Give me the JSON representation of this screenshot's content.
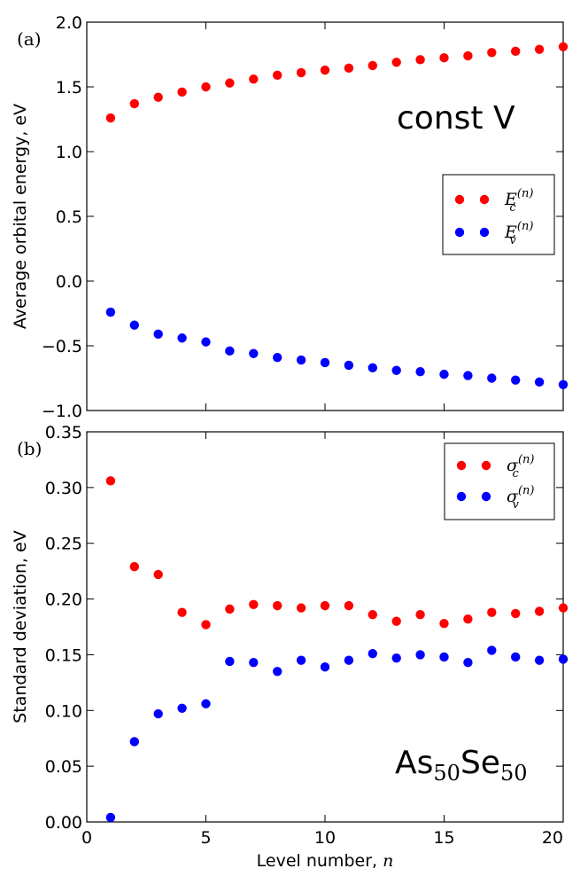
{
  "chart_data": [
    {
      "type": "scatter",
      "panel_label": "(a)",
      "annotation": "const V",
      "ylabel": "Average orbital energy, eV",
      "xlabel": "",
      "xlim": [
        0,
        20
      ],
      "ylim": [
        -1.0,
        2.0
      ],
      "xticks": [
        "0",
        "5",
        "10",
        "15",
        "20"
      ],
      "yticks": [
        "−1.0",
        "−0.5",
        "0.0",
        "0.5",
        "1.0",
        "1.5",
        "2.0"
      ],
      "ytick_values": [
        -1.0,
        -0.5,
        0.0,
        0.5,
        1.0,
        1.5,
        2.0
      ],
      "legend_position": "center-right",
      "x": [
        1,
        2,
        3,
        4,
        5,
        6,
        7,
        8,
        9,
        10,
        11,
        12,
        13,
        14,
        15,
        16,
        17,
        18,
        19,
        20
      ],
      "series": [
        {
          "name": "E",
          "sub": "c",
          "sup": "(n)",
          "color": "#ff0000",
          "values": [
            1.26,
            1.37,
            1.42,
            1.46,
            1.5,
            1.53,
            1.56,
            1.59,
            1.61,
            1.63,
            1.645,
            1.665,
            1.69,
            1.71,
            1.725,
            1.74,
            1.765,
            1.775,
            1.79,
            1.81
          ]
        },
        {
          "name": "E",
          "sub": "v",
          "sup": "(n)",
          "color": "#0000ff",
          "values": [
            -0.24,
            -0.34,
            -0.41,
            -0.44,
            -0.47,
            -0.54,
            -0.56,
            -0.59,
            -0.61,
            -0.63,
            -0.65,
            -0.67,
            -0.69,
            -0.7,
            -0.72,
            -0.73,
            -0.75,
            -0.765,
            -0.78,
            -0.8
          ]
        }
      ]
    },
    {
      "type": "scatter",
      "panel_label": "(b)",
      "annotation": {
        "main1": "As",
        "sub1": "50",
        "main2": "Se",
        "sub2": "50"
      },
      "ylabel": "Standard deviation, eV",
      "xlabel": "Level number, n",
      "xlim": [
        0,
        20
      ],
      "ylim": [
        0.0,
        0.35
      ],
      "xticks": [
        "0",
        "5",
        "10",
        "15",
        "20"
      ],
      "yticks": [
        "0.00",
        "0.05",
        "0.10",
        "0.15",
        "0.20",
        "0.25",
        "0.30",
        "0.35"
      ],
      "ytick_values": [
        0.0,
        0.05,
        0.1,
        0.15,
        0.2,
        0.25,
        0.3,
        0.35
      ],
      "legend_position": "upper-right",
      "x": [
        1,
        2,
        3,
        4,
        5,
        6,
        7,
        8,
        9,
        10,
        11,
        12,
        13,
        14,
        15,
        16,
        17,
        18,
        19,
        20
      ],
      "series": [
        {
          "name": "σ",
          "sub": "c",
          "sup": "(n)",
          "color": "#ff0000",
          "values": [
            0.306,
            0.229,
            0.222,
            0.188,
            0.177,
            0.191,
            0.195,
            0.194,
            0.192,
            0.194,
            0.194,
            0.186,
            0.18,
            0.186,
            0.178,
            0.182,
            0.188,
            0.187,
            0.189,
            0.192
          ]
        },
        {
          "name": "σ",
          "sub": "v",
          "sup": "(n)",
          "color": "#0000ff",
          "values": [
            0.004,
            0.072,
            0.097,
            0.102,
            0.106,
            0.144,
            0.143,
            0.135,
            0.145,
            0.139,
            0.145,
            0.151,
            0.147,
            0.15,
            0.148,
            0.143,
            0.154,
            0.148,
            0.145,
            0.146
          ]
        }
      ]
    }
  ]
}
